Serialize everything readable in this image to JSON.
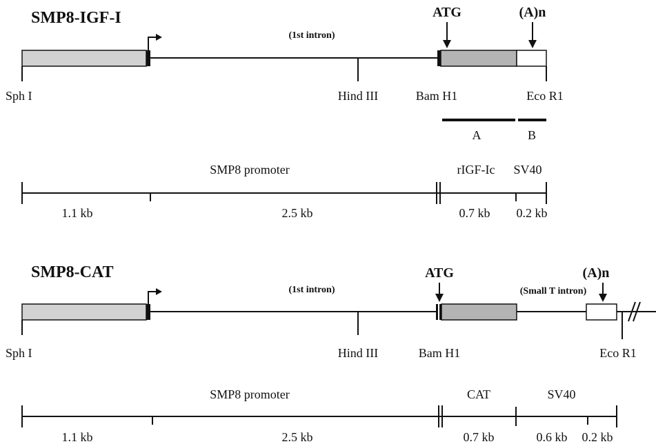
{
  "colors": {
    "promoter_fill": "#d2d2d2",
    "coding_fill": "#b4b4b4",
    "ink": "#111111",
    "background": "#ffffff"
  },
  "construct1": {
    "title": "SMP8-IGF-I",
    "intron_label": "(1st intron)",
    "atg_label": "ATG",
    "polya_label": "(A)n",
    "sites": {
      "sph": "Sph I",
      "hind": "Hind III",
      "bam": "Bam H1",
      "eco": "Eco R1"
    },
    "probe_a": "A",
    "probe_b": "B",
    "region_labels": {
      "promoter": "SMP8  promoter",
      "insert": "rIGF-Ic",
      "sv40": "SV40"
    },
    "sizes": {
      "s1": "1.1 kb",
      "s2": "2.5 kb",
      "s3": "0.7 kb",
      "s4": "0.2 kb"
    }
  },
  "construct2": {
    "title": "SMP8-CAT",
    "intron_label": "(1st intron)",
    "atg_label": "ATG",
    "small_t_label": "(Small T intron)",
    "polya_label": "(A)n",
    "sites": {
      "sph": "Sph I",
      "hind": "Hind III",
      "bam": "Bam H1",
      "eco": "Eco R1"
    },
    "region_labels": {
      "promoter": "SMP8  promoter",
      "insert": "CAT",
      "sv40": "SV40"
    },
    "sizes": {
      "s1": "1.1 kb",
      "s2": "2.5 kb",
      "s3": "0.7 kb",
      "s4": "0.6 kb",
      "s5": "0.2 kb"
    }
  }
}
